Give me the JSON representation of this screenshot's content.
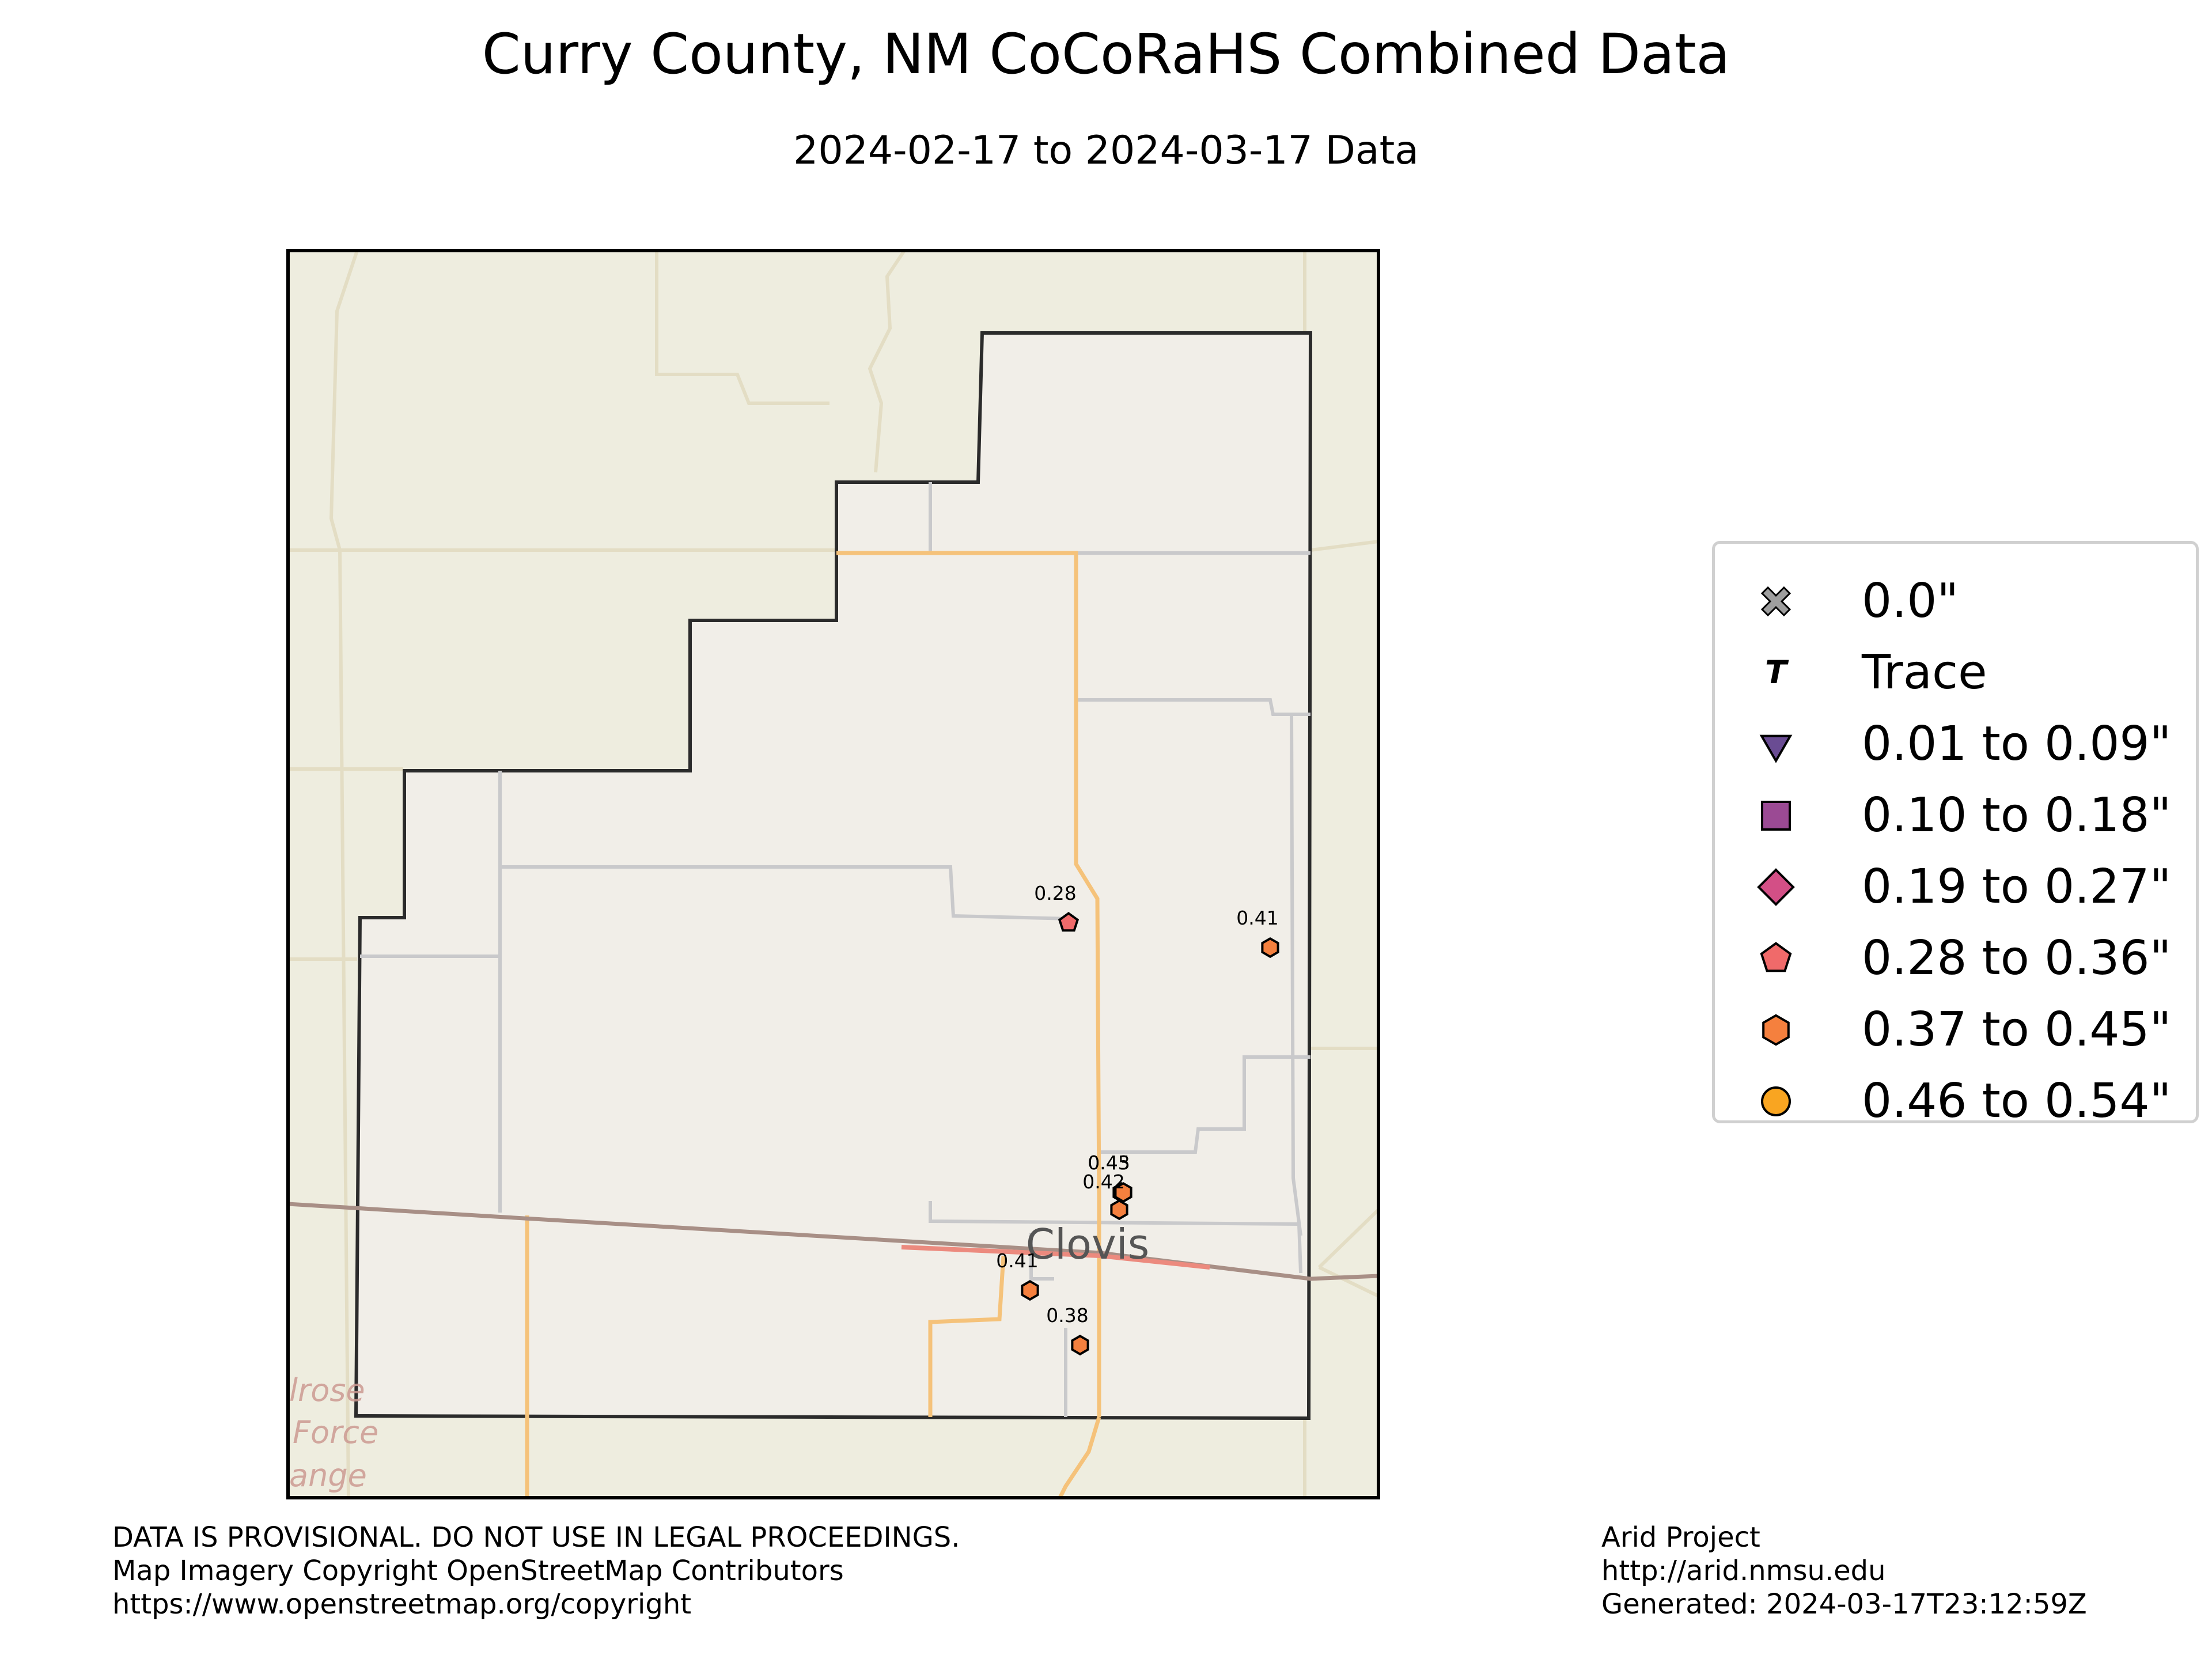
{
  "title": "Curry County, NM CoCoRaHS Combined Data",
  "subtitle": "2024-02-17 to 2024-03-17 Data",
  "map": {
    "place_label": "Clovis",
    "partial_labels": [
      "lrose",
      "Force",
      "ange"
    ],
    "colors": {
      "land": "#eeeddf",
      "county_fill": "#f1eee8",
      "county_border": "#2b2b2b",
      "road_orange": "#f5c27a",
      "road_gray": "#c9c9cb",
      "rail": "#a88f86",
      "highway_red": "#ec8a7e"
    },
    "stations": [
      {
        "value": "0.28",
        "symbol": "pentagon",
        "color": "#f06a6a",
        "label_shown": true
      },
      {
        "value": "0.41",
        "symbol": "hexagon",
        "color": "#f5803e",
        "label_shown": true
      },
      {
        "value": "0.45",
        "symbol": "hexagon",
        "color": "#f5803e",
        "label_shown": true
      },
      {
        "value": "0.43",
        "symbol": "hexagon",
        "color": "#f5803e",
        "label_shown": true
      },
      {
        "value": "0.42",
        "symbol": "hexagon",
        "color": "#f5803e",
        "label_shown": true
      },
      {
        "value": "0.41",
        "symbol": "hexagon",
        "color": "#f5803e",
        "label_shown": true
      },
      {
        "value": "0.38",
        "symbol": "hexagon",
        "color": "#f5803e",
        "label_shown": true
      }
    ]
  },
  "legend": [
    {
      "label": "0.0\"",
      "symbol": "x-cross",
      "color": "#9e9e9e"
    },
    {
      "label": "Trace",
      "symbol": "T",
      "color": "#000000"
    },
    {
      "label": "0.01 to 0.09\"",
      "symbol": "triangle-down",
      "color": "#6a4c93"
    },
    {
      "label": "0.10 to 0.18\"",
      "symbol": "square",
      "color": "#9b4a94"
    },
    {
      "label": "0.19 to 0.27\"",
      "symbol": "diamond",
      "color": "#d34f86"
    },
    {
      "label": "0.28 to 0.36\"",
      "symbol": "pentagon",
      "color": "#f06a6a"
    },
    {
      "label": "0.37 to 0.45\"",
      "symbol": "hexagon",
      "color": "#f5803e"
    },
    {
      "label": "0.46 to 0.54\"",
      "symbol": "circle",
      "color": "#f9a521"
    }
  ],
  "footer_left": [
    "DATA IS PROVISIONAL. DO NOT USE IN LEGAL PROCEEDINGS.",
    "Map Imagery Copyright OpenStreetMap Contributors",
    "https://www.openstreetmap.org/copyright"
  ],
  "footer_right": [
    "Arid Project",
    "http://arid.nmsu.edu",
    "Generated: 2024-03-17T23:12:59Z"
  ]
}
